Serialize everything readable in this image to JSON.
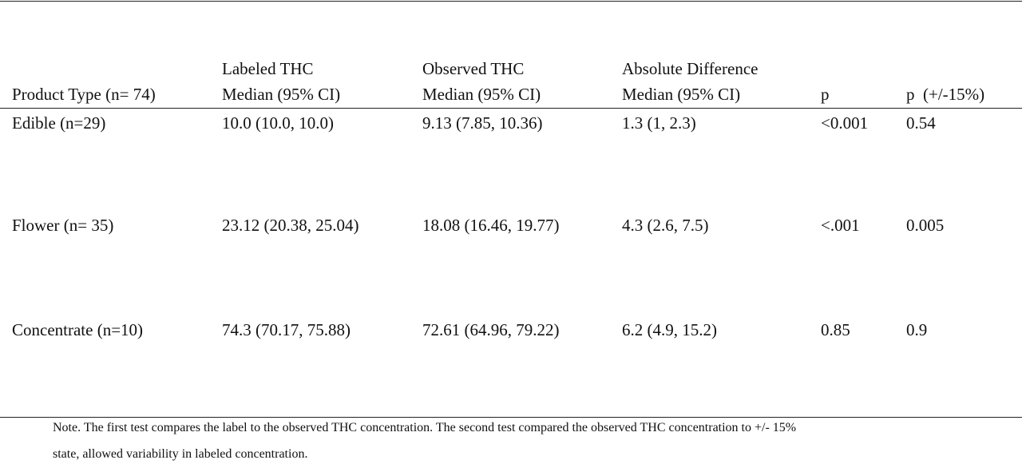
{
  "table": {
    "headers": [
      {
        "line1": "",
        "line2": "Product Type (n= 74)"
      },
      {
        "line1": "Labeled THC",
        "line2": "Median (95% CI)"
      },
      {
        "line1": "Observed THC",
        "line2": "Median (95% CI)"
      },
      {
        "line1": "Absolute Difference",
        "line2": "Median (95% CI)"
      },
      {
        "line1": "",
        "line2": "p"
      },
      {
        "line1": "",
        "line2": "p  (+/-15%)"
      }
    ],
    "rows": [
      [
        "Edible (n=29)",
        "10.0 (10.0, 10.0)",
        "9.13 (7.85, 10.36)",
        "1.3 (1, 2.3)",
        "<0.001",
        "0.54"
      ],
      [
        "Flower (n= 35)",
        "23.12 (20.38, 25.04)",
        "18.08 (16.46, 19.77)",
        "4.3 (2.6, 7.5)",
        "<.001",
        "0.005"
      ],
      [
        "Concentrate (n=10)",
        "74.3 (70.17, 75.88)",
        "72.61 (64.96, 79.22)",
        "6.2 (4.9, 15.2)",
        "0.85",
        "0.9"
      ]
    ]
  },
  "note": {
    "line1": "Note. The first test compares the label to the observed THC concentration. The second test compared the observed THC concentration to +/- 15%",
    "line2": "state, allowed variability in labeled concentration."
  }
}
